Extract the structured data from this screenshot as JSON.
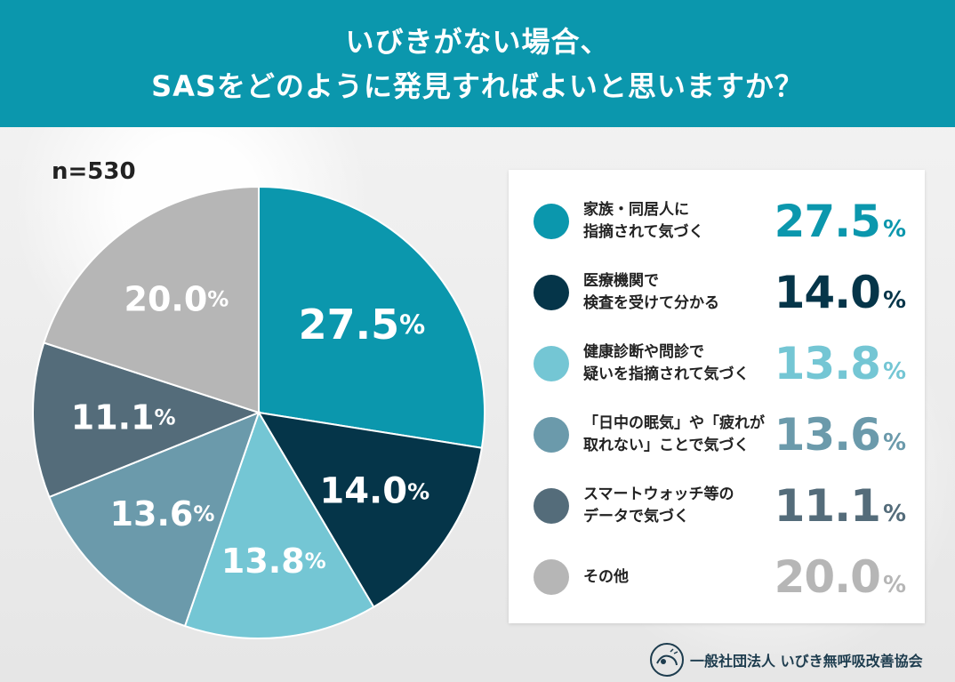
{
  "header": {
    "line1": "いびきがない場合、",
    "line2": "SASをどのように発見すればよいと思いますか？"
  },
  "sample_size": "n=530",
  "chart_data": {
    "type": "pie",
    "unit": "%",
    "slices": [
      {
        "label_lines": [
          "家族・同居人に",
          "指摘されて気づく"
        ],
        "value": 27.5,
        "display": "27.5",
        "color": "#0b97ad"
      },
      {
        "label_lines": [
          "医療機関で",
          "検査を受けて分かる"
        ],
        "value": 14.0,
        "display": "14.0",
        "color": "#053549"
      },
      {
        "label_lines": [
          "健康診断や問診で",
          "疑いを指摘されて気づく"
        ],
        "value": 13.8,
        "display": "13.8",
        "color": "#74c6d4"
      },
      {
        "label_lines": [
          "「日中の眠気」や「疲れが",
          "取れない」ことで気づく"
        ],
        "value": 13.6,
        "display": "13.6",
        "color": "#6b9aab"
      },
      {
        "label_lines": [
          "スマートウォッチ等の",
          "データで気づく"
        ],
        "value": 11.1,
        "display": "11.1",
        "color": "#546c7a"
      },
      {
        "label_lines": [
          "その他"
        ],
        "value": 20.0,
        "display": "20.0",
        "color": "#b6b6b6"
      }
    ]
  },
  "footer": {
    "organization": "一般社団法人 いびき無呼吸改善協会"
  }
}
